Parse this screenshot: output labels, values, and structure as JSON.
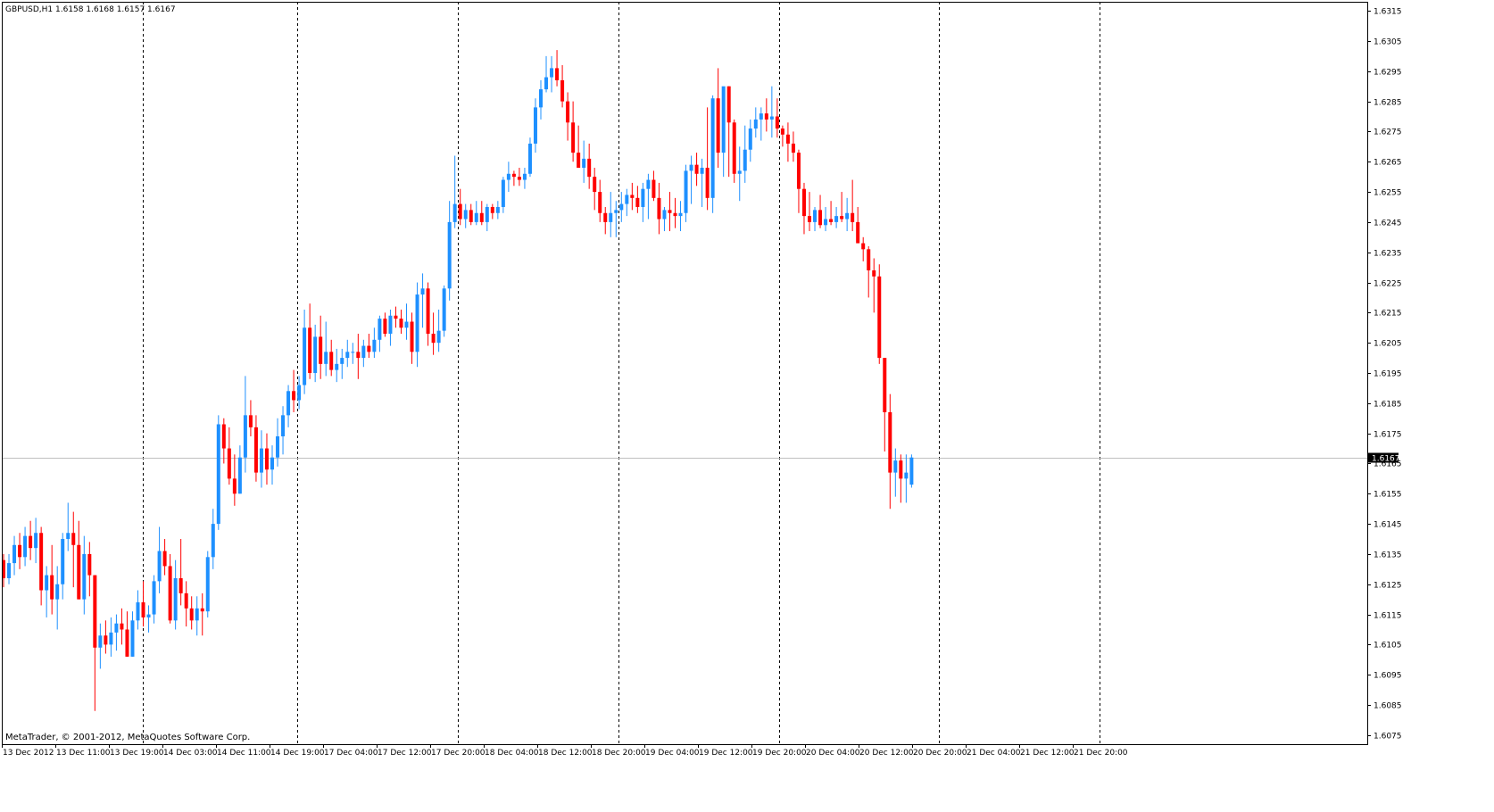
{
  "header": {
    "symbol": "GBPUSD,H1",
    "ohlc": "1.6158 1.6168 1.6157 1.6167"
  },
  "footer": {
    "copyright": "MetaTrader, © 2001-2012, MetaQuotes Software Corp."
  },
  "colors": {
    "bull": "#1E90FF",
    "bear": "#FF0000",
    "background": "#FFFFFF",
    "frame": "#000000",
    "grid": "#000000",
    "price_line": "#C0C0C0"
  },
  "chart_data": {
    "type": "candlestick",
    "symbol": "GBPUSD",
    "timeframe": "H1",
    "ylim": [
      1.6072,
      1.6318
    ],
    "y_ticks": [
      "1.6075",
      "1.6085",
      "1.6095",
      "1.6105",
      "1.6115",
      "1.6125",
      "1.6135",
      "1.6145",
      "1.6155",
      "1.6165",
      "1.6175",
      "1.6185",
      "1.6195",
      "1.6205",
      "1.6215",
      "1.6225",
      "1.6235",
      "1.6245",
      "1.6255",
      "1.6265",
      "1.6275",
      "1.6285",
      "1.6295",
      "1.6305",
      "1.6315"
    ],
    "x_ticks": [
      "13 Dec 2012",
      "13 Dec 11:00",
      "13 Dec 19:00",
      "14 Dec 03:00",
      "14 Dec 11:00",
      "14 Dec 19:00",
      "17 Dec 04:00",
      "17 Dec 12:00",
      "17 Dec 20:00",
      "18 Dec 04:00",
      "18 Dec 12:00",
      "18 Dec 20:00",
      "19 Dec 04:00",
      "19 Dec 12:00",
      "19 Dec 20:00",
      "20 Dec 04:00",
      "20 Dec 12:00",
      "20 Dec 20:00",
      "21 Dec 04:00",
      "21 Dec 12:00",
      "21 Dec 20:00"
    ],
    "period_separators": [
      "13 Dec",
      "14 Dec",
      "17 Dec",
      "18 Dec",
      "19 Dec",
      "20 Dec",
      "21 Dec"
    ],
    "current_price": "1.6167",
    "grid": false,
    "candles": [
      [
        1.6133,
        1.6135,
        1.6124,
        1.6127
      ],
      [
        1.6127,
        1.6135,
        1.6125,
        1.6132
      ],
      [
        1.6132,
        1.6141,
        1.6128,
        1.6138
      ],
      [
        1.6138,
        1.6142,
        1.613,
        1.6134
      ],
      [
        1.6134,
        1.6144,
        1.6131,
        1.6141
      ],
      [
        1.6141,
        1.6146,
        1.6133,
        1.6137
      ],
      [
        1.6137,
        1.6147,
        1.6132,
        1.6142
      ],
      [
        1.6142,
        1.6144,
        1.6118,
        1.6123
      ],
      [
        1.6123,
        1.6131,
        1.6114,
        1.6128
      ],
      [
        1.6128,
        1.6138,
        1.6115,
        1.612
      ],
      [
        1.612,
        1.6131,
        1.611,
        1.6125
      ],
      [
        1.6125,
        1.6142,
        1.612,
        1.614
      ],
      [
        1.614,
        1.6152,
        1.6136,
        1.6142
      ],
      [
        1.6142,
        1.6149,
        1.6124,
        1.6138
      ],
      [
        1.6138,
        1.6146,
        1.612,
        1.612
      ],
      [
        1.612,
        1.6141,
        1.6115,
        1.6135
      ],
      [
        1.6135,
        1.6139,
        1.6121,
        1.6128
      ],
      [
        1.6128,
        1.6128,
        1.6083,
        1.6104
      ],
      [
        1.6104,
        1.6112,
        1.6097,
        1.6108
      ],
      [
        1.6108,
        1.6113,
        1.6102,
        1.6105
      ],
      [
        1.6105,
        1.6114,
        1.6101,
        1.6109
      ],
      [
        1.6109,
        1.6115,
        1.6103,
        1.6112
      ],
      [
        1.6112,
        1.6117,
        1.6105,
        1.611
      ],
      [
        1.611,
        1.6116,
        1.6101,
        1.6101
      ],
      [
        1.6101,
        1.6116,
        1.6101,
        1.6113
      ],
      [
        1.6113,
        1.6123,
        1.611,
        1.6119
      ],
      [
        1.6119,
        1.6126,
        1.6111,
        1.6114
      ],
      [
        1.6114,
        1.6118,
        1.6109,
        1.6115
      ],
      [
        1.6115,
        1.6128,
        1.6112,
        1.6126
      ],
      [
        1.6126,
        1.6144,
        1.6122,
        1.6136
      ],
      [
        1.6136,
        1.614,
        1.6128,
        1.6131
      ],
      [
        1.6131,
        1.6135,
        1.6112,
        1.6113
      ],
      [
        1.6113,
        1.6133,
        1.611,
        1.6127
      ],
      [
        1.6127,
        1.614,
        1.6118,
        1.6122
      ],
      [
        1.6122,
        1.6126,
        1.6111,
        1.6117
      ],
      [
        1.6117,
        1.6121,
        1.611,
        1.6113
      ],
      [
        1.6113,
        1.6121,
        1.6108,
        1.6117
      ],
      [
        1.6117,
        1.6122,
        1.6108,
        1.6116
      ],
      [
        1.6116,
        1.6136,
        1.6114,
        1.6134
      ],
      [
        1.6134,
        1.615,
        1.613,
        1.6145
      ],
      [
        1.6145,
        1.6181,
        1.6143,
        1.6178
      ],
      [
        1.6178,
        1.618,
        1.6165,
        1.617
      ],
      [
        1.617,
        1.6177,
        1.6158,
        1.616
      ],
      [
        1.616,
        1.6168,
        1.6151,
        1.6155
      ],
      [
        1.6155,
        1.6171,
        1.6155,
        1.6167
      ],
      [
        1.6167,
        1.6194,
        1.6162,
        1.6181
      ],
      [
        1.6181,
        1.6186,
        1.6174,
        1.6177
      ],
      [
        1.6177,
        1.6181,
        1.6159,
        1.6162
      ],
      [
        1.6162,
        1.6176,
        1.6157,
        1.617
      ],
      [
        1.617,
        1.6175,
        1.6158,
        1.6163
      ],
      [
        1.6163,
        1.6171,
        1.6158,
        1.6167
      ],
      [
        1.6167,
        1.618,
        1.6164,
        1.6174
      ],
      [
        1.6174,
        1.6184,
        1.6168,
        1.6181
      ],
      [
        1.6181,
        1.6191,
        1.6177,
        1.6189
      ],
      [
        1.6189,
        1.6196,
        1.6182,
        1.6186
      ],
      [
        1.6186,
        1.6194,
        1.6183,
        1.6191
      ],
      [
        1.6191,
        1.6216,
        1.6188,
        1.621
      ],
      [
        1.621,
        1.6218,
        1.6193,
        1.6195
      ],
      [
        1.6195,
        1.6211,
        1.6192,
        1.6207
      ],
      [
        1.6207,
        1.6214,
        1.6193,
        1.6198
      ],
      [
        1.6198,
        1.6212,
        1.6194,
        1.6202
      ],
      [
        1.6202,
        1.6206,
        1.6194,
        1.6196
      ],
      [
        1.6196,
        1.6203,
        1.6192,
        1.6198
      ],
      [
        1.6198,
        1.6203,
        1.6193,
        1.62
      ],
      [
        1.62,
        1.6206,
        1.6197,
        1.6202
      ],
      [
        1.6202,
        1.6205,
        1.6198,
        1.6202
      ],
      [
        1.6202,
        1.6208,
        1.6193,
        1.62
      ],
      [
        1.62,
        1.6206,
        1.6197,
        1.6204
      ],
      [
        1.6204,
        1.6208,
        1.62,
        1.6202
      ],
      [
        1.6202,
        1.621,
        1.62,
        1.6206
      ],
      [
        1.6206,
        1.6214,
        1.6202,
        1.6213
      ],
      [
        1.6213,
        1.6215,
        1.6207,
        1.6208
      ],
      [
        1.6208,
        1.6216,
        1.6204,
        1.6214
      ],
      [
        1.6214,
        1.6217,
        1.621,
        1.6213
      ],
      [
        1.6213,
        1.6216,
        1.6208,
        1.621
      ],
      [
        1.621,
        1.6218,
        1.6206,
        1.6212
      ],
      [
        1.6212,
        1.6215,
        1.6198,
        1.6202
      ],
      [
        1.6202,
        1.6225,
        1.6197,
        1.6221
      ],
      [
        1.6221,
        1.6228,
        1.621,
        1.6223
      ],
      [
        1.6223,
        1.6225,
        1.6204,
        1.6208
      ],
      [
        1.6208,
        1.6215,
        1.6201,
        1.6205
      ],
      [
        1.6205,
        1.6216,
        1.6202,
        1.6209
      ],
      [
        1.6209,
        1.6224,
        1.6207,
        1.6223
      ],
      [
        1.6223,
        1.6252,
        1.6219,
        1.6245
      ],
      [
        1.6245,
        1.6267,
        1.6243,
        1.6251
      ],
      [
        1.6251,
        1.6256,
        1.6244,
        1.6246
      ],
      [
        1.6246,
        1.6251,
        1.6243,
        1.6249
      ],
      [
        1.6249,
        1.6251,
        1.6244,
        1.6245
      ],
      [
        1.6245,
        1.6252,
        1.6244,
        1.6248
      ],
      [
        1.6248,
        1.6252,
        1.6244,
        1.6245
      ],
      [
        1.6245,
        1.6251,
        1.6242,
        1.625
      ],
      [
        1.625,
        1.6251,
        1.6246,
        1.6248
      ],
      [
        1.6248,
        1.6252,
        1.6246,
        1.625
      ],
      [
        1.625,
        1.626,
        1.6248,
        1.6259
      ],
      [
        1.6259,
        1.6265,
        1.6255,
        1.6261
      ],
      [
        1.6261,
        1.6262,
        1.6257,
        1.626
      ],
      [
        1.626,
        1.6263,
        1.6257,
        1.6259
      ],
      [
        1.6259,
        1.6263,
        1.6256,
        1.6261
      ],
      [
        1.6261,
        1.6273,
        1.626,
        1.6271
      ],
      [
        1.6271,
        1.6286,
        1.6268,
        1.6283
      ],
      [
        1.6283,
        1.6292,
        1.6279,
        1.6289
      ],
      [
        1.6289,
        1.63,
        1.6288,
        1.6293
      ],
      [
        1.6293,
        1.63,
        1.6288,
        1.6296
      ],
      [
        1.6296,
        1.6302,
        1.629,
        1.6292
      ],
      [
        1.6292,
        1.6297,
        1.6283,
        1.6285
      ],
      [
        1.6285,
        1.6288,
        1.6272,
        1.6278
      ],
      [
        1.6278,
        1.6285,
        1.6265,
        1.6268
      ],
      [
        1.6268,
        1.6277,
        1.6263,
        1.6263
      ],
      [
        1.6263,
        1.6272,
        1.6258,
        1.6266
      ],
      [
        1.6266,
        1.6271,
        1.6256,
        1.626
      ],
      [
        1.626,
        1.6263,
        1.6249,
        1.6255
      ],
      [
        1.6255,
        1.6259,
        1.6245,
        1.6248
      ],
      [
        1.6248,
        1.625,
        1.6241,
        1.6245
      ],
      [
        1.6245,
        1.6255,
        1.624,
        1.6248
      ],
      [
        1.6248,
        1.6252,
        1.624,
        1.6249
      ],
      [
        1.6249,
        1.6255,
        1.6245,
        1.6251
      ],
      [
        1.6251,
        1.6256,
        1.6247,
        1.6254
      ],
      [
        1.6254,
        1.6258,
        1.6249,
        1.6253
      ],
      [
        1.6253,
        1.6257,
        1.6248,
        1.625
      ],
      [
        1.625,
        1.6258,
        1.6245,
        1.6256
      ],
      [
        1.6256,
        1.6261,
        1.6246,
        1.6259
      ],
      [
        1.6259,
        1.6262,
        1.6252,
        1.6253
      ],
      [
        1.6253,
        1.6258,
        1.6241,
        1.6246
      ],
      [
        1.6246,
        1.625,
        1.6242,
        1.6249
      ],
      [
        1.6249,
        1.6255,
        1.6242,
        1.6248
      ],
      [
        1.6248,
        1.6253,
        1.6243,
        1.6247
      ],
      [
        1.6247,
        1.6252,
        1.6242,
        1.6248
      ],
      [
        1.6248,
        1.6264,
        1.6245,
        1.6262
      ],
      [
        1.6262,
        1.6267,
        1.6251,
        1.6264
      ],
      [
        1.6264,
        1.6268,
        1.6257,
        1.6261
      ],
      [
        1.6261,
        1.6266,
        1.625,
        1.6263
      ],
      [
        1.6263,
        1.6283,
        1.6249,
        1.6253
      ],
      [
        1.6253,
        1.6287,
        1.6248,
        1.6286
      ],
      [
        1.6286,
        1.6296,
        1.6263,
        1.6268
      ],
      [
        1.6268,
        1.6288,
        1.626,
        1.629
      ],
      [
        1.629,
        1.629,
        1.626,
        1.6278
      ],
      [
        1.6278,
        1.6279,
        1.6258,
        1.6261
      ],
      [
        1.6261,
        1.627,
        1.6252,
        1.6262
      ],
      [
        1.6262,
        1.6277,
        1.6258,
        1.6269
      ],
      [
        1.6269,
        1.6279,
        1.6265,
        1.6276
      ],
      [
        1.6276,
        1.6283,
        1.6273,
        1.6279
      ],
      [
        1.6279,
        1.6283,
        1.6272,
        1.6281
      ],
      [
        1.6281,
        1.6286,
        1.6275,
        1.6279
      ],
      [
        1.6279,
        1.629,
        1.6273,
        1.628
      ],
      [
        1.628,
        1.6286,
        1.6273,
        1.6276
      ],
      [
        1.6276,
        1.6277,
        1.627,
        1.6274
      ],
      [
        1.6274,
        1.6278,
        1.6265,
        1.6271
      ],
      [
        1.6271,
        1.6275,
        1.6265,
        1.6268
      ],
      [
        1.6268,
        1.6269,
        1.6248,
        1.6256
      ],
      [
        1.6256,
        1.6258,
        1.6241,
        1.6247
      ],
      [
        1.6247,
        1.6255,
        1.6242,
        1.6245
      ],
      [
        1.6245,
        1.625,
        1.6242,
        1.6249
      ],
      [
        1.6249,
        1.6254,
        1.6243,
        1.6244
      ],
      [
        1.6244,
        1.625,
        1.6242,
        1.6246
      ],
      [
        1.6246,
        1.6252,
        1.6244,
        1.6245
      ],
      [
        1.6245,
        1.625,
        1.6243,
        1.6247
      ],
      [
        1.6247,
        1.6255,
        1.6245,
        1.6246
      ],
      [
        1.6246,
        1.6253,
        1.6242,
        1.6248
      ],
      [
        1.6248,
        1.6259,
        1.6242,
        1.6245
      ],
      [
        1.6245,
        1.625,
        1.6238,
        1.6238
      ],
      [
        1.6238,
        1.624,
        1.6232,
        1.6236
      ],
      [
        1.6236,
        1.6237,
        1.622,
        1.6229
      ],
      [
        1.6229,
        1.6233,
        1.6215,
        1.6227
      ],
      [
        1.6227,
        1.6231,
        1.6198,
        1.62
      ],
      [
        1.62,
        1.62,
        1.6169,
        1.6182
      ],
      [
        1.6182,
        1.6188,
        1.615,
        1.6162
      ],
      [
        1.6162,
        1.617,
        1.6154,
        1.6166
      ],
      [
        1.6166,
        1.6168,
        1.6152,
        1.616
      ],
      [
        1.616,
        1.6168,
        1.6152,
        1.6162
      ],
      [
        1.6158,
        1.6168,
        1.6157,
        1.6167
      ]
    ]
  }
}
